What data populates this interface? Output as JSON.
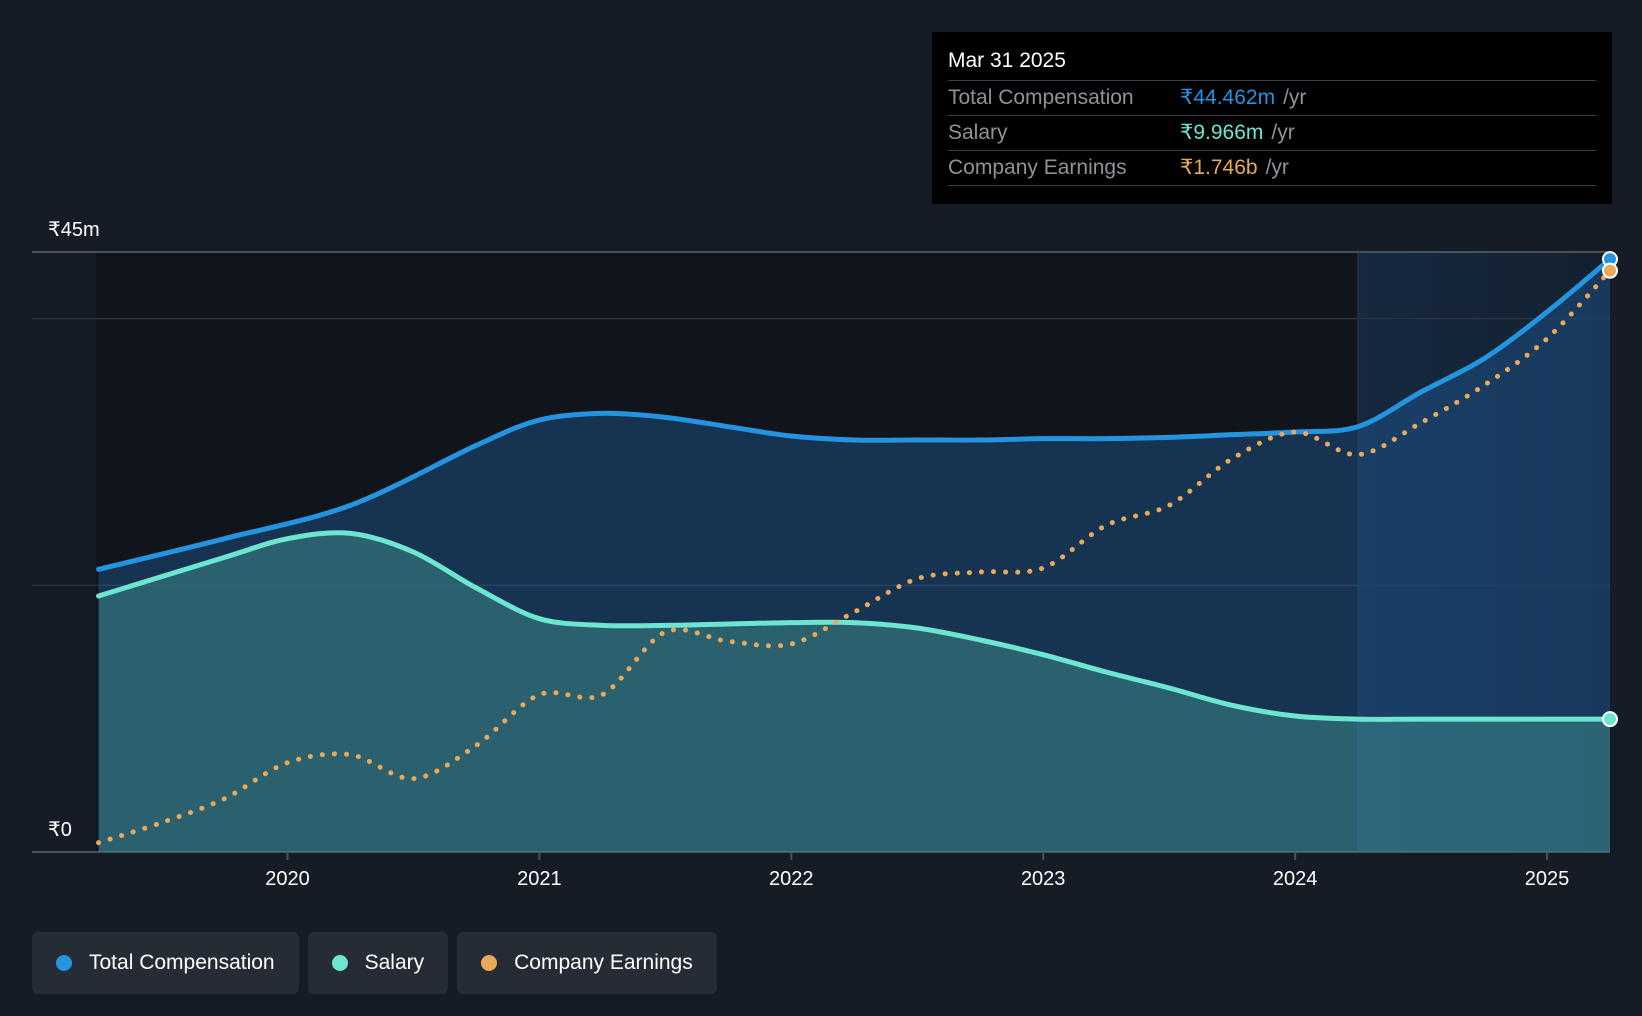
{
  "tooltip": {
    "date": "Mar 31 2025",
    "rows": [
      {
        "label": "Total Compensation",
        "value": "₹44.462m",
        "unit": "/yr",
        "color": "#2394df"
      },
      {
        "label": "Salary",
        "value": "₹9.966m",
        "unit": "/yr",
        "color": "#6ce5d1"
      },
      {
        "label": "Company Earnings",
        "value": "₹1.746b",
        "unit": "/yr",
        "color": "#e8a95a"
      }
    ]
  },
  "legend": [
    {
      "label": "Total Compensation",
      "color": "#2394df"
    },
    {
      "label": "Salary",
      "color": "#6ce5d1"
    },
    {
      "label": "Company Earnings",
      "color": "#e8a95a"
    }
  ],
  "chart_data": {
    "type": "area",
    "y_axis_labels": [
      "₹45m",
      "₹0"
    ],
    "ylim": [
      0,
      45
    ],
    "xlim": [
      2019.24,
      2025.25
    ],
    "x_ticks": [
      {
        "value": 2020,
        "label": "2020"
      },
      {
        "value": 2021,
        "label": "2021"
      },
      {
        "value": 2022,
        "label": "2022"
      },
      {
        "value": 2023,
        "label": "2023"
      },
      {
        "value": 2024,
        "label": "2024"
      },
      {
        "value": 2025,
        "label": "2025"
      }
    ],
    "highlight_start": 2024.25,
    "grid": "horizontal",
    "legend_position": "bottom-left",
    "series": [
      {
        "name": "Total Compensation",
        "color": "#2394df",
        "style": "solid-area",
        "x": [
          2019.25,
          2019.75,
          2020.25,
          2020.75,
          2021.0,
          2021.25,
          2021.5,
          2021.75,
          2022.0,
          2022.25,
          2022.5,
          2022.75,
          2023.0,
          2023.25,
          2023.5,
          2023.75,
          2024.0,
          2024.25,
          2024.5,
          2024.75,
          2025.0,
          2025.25
        ],
        "y": [
          21.2,
          23.5,
          26.0,
          30.5,
          32.4,
          32.9,
          32.6,
          31.9,
          31.2,
          30.9,
          30.9,
          30.9,
          31.0,
          31.0,
          31.1,
          31.3,
          31.5,
          31.9,
          34.5,
          37.0,
          40.5,
          44.462
        ]
      },
      {
        "name": "Salary",
        "color": "#6ce5d1",
        "style": "solid-area",
        "x": [
          2019.25,
          2019.75,
          2020.0,
          2020.25,
          2020.5,
          2020.75,
          2021.0,
          2021.25,
          2021.5,
          2021.75,
          2022.0,
          2022.25,
          2022.5,
          2022.75,
          2023.0,
          2023.25,
          2023.5,
          2023.75,
          2024.0,
          2024.25,
          2024.5,
          2024.75,
          2025.0,
          2025.25
        ],
        "y": [
          19.2,
          22.1,
          23.5,
          23.9,
          22.5,
          19.8,
          17.5,
          17.0,
          17.0,
          17.1,
          17.2,
          17.2,
          16.8,
          15.9,
          14.8,
          13.5,
          12.3,
          11.0,
          10.2,
          9.966,
          9.966,
          9.966,
          9.966,
          9.966
        ]
      },
      {
        "name": "Company Earnings",
        "color": "#e8a95a",
        "style": "dotted",
        "x": [
          2019.25,
          2019.5,
          2019.75,
          2020.0,
          2020.25,
          2020.5,
          2020.75,
          2021.0,
          2021.25,
          2021.5,
          2021.75,
          2022.0,
          2022.25,
          2022.5,
          2022.75,
          2023.0,
          2023.25,
          2023.5,
          2023.75,
          2024.0,
          2024.25,
          2024.5,
          2024.75,
          2025.0,
          2025.25
        ],
        "y": [
          0.7,
          2.2,
          4.0,
          6.7,
          7.3,
          5.5,
          8.0,
          11.8,
          11.8,
          16.5,
          15.8,
          15.6,
          18.0,
          20.5,
          21.0,
          21.3,
          24.5,
          26.0,
          29.5,
          31.5,
          29.8,
          32.2,
          35.0,
          38.5,
          43.6
        ]
      }
    ]
  }
}
